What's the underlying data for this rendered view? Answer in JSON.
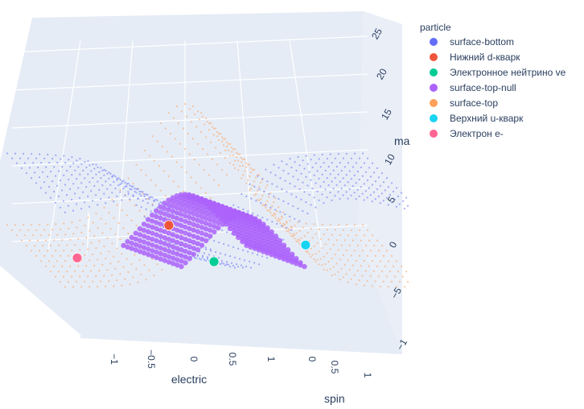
{
  "chart_data": {
    "type": "scatter",
    "mode": "3d",
    "axes": {
      "x": {
        "title": "electric",
        "ticks": [
          "−1",
          "−0.5",
          "0",
          "0.5",
          "1"
        ],
        "range": [
          -1.3,
          1.3
        ]
      },
      "y": {
        "title": "spin",
        "ticks": [
          "0",
          "0.5",
          "1"
        ],
        "range": [
          -0.1,
          1.1
        ]
      },
      "z": {
        "title": "mass",
        "ticks": [
          "0",
          "5",
          "10",
          "15",
          "20",
          "25"
        ],
        "range": [
          -8,
          26
        ]
      }
    },
    "legend": {
      "title": "particle",
      "placement": "right"
    },
    "series": [
      {
        "name": "surface-bottom",
        "color": "#636efa",
        "kind": "surface"
      },
      {
        "name": "Нижний d-кварк",
        "color": "#EF553B",
        "kind": "marker",
        "x": -0.33,
        "y": 0.5,
        "z": 4.8
      },
      {
        "name": "Электронное нейтрино ve",
        "color": "#00cc96",
        "kind": "marker",
        "x": 0,
        "y": 0.5,
        "z": 0
      },
      {
        "name": "surface-top-null",
        "color": "#ab63fa",
        "kind": "surface"
      },
      {
        "name": "surface-top",
        "color": "#FFA15A",
        "kind": "surface"
      },
      {
        "name": "Верхний u-кварк",
        "color": "#19d3f3",
        "kind": "marker",
        "x": 0.67,
        "y": 0.5,
        "z": 2.2
      },
      {
        "name": "Электрон e-",
        "color": "#FF6692",
        "kind": "marker",
        "x": -1,
        "y": 0.5,
        "z": 0.5
      }
    ]
  },
  "figure": {
    "axis_visible_labels": {
      "z_partial": "ma",
      "y_partial": "spin"
    },
    "visible_ticks_extra": {
      "z_lower": "−5",
      "z_lower2": "−1"
    }
  }
}
